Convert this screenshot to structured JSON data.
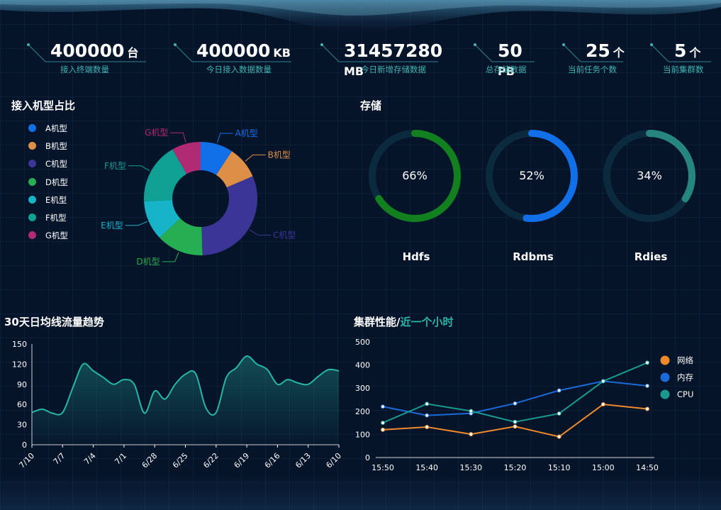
{
  "stats": [
    {
      "value": "400000",
      "unit": "台",
      "label": "接入终端数量"
    },
    {
      "value": "400000",
      "unit": "KB",
      "label": "今日接入数据数量"
    },
    {
      "value": "31457280",
      "unit": "MB",
      "label": "今日新增存储数据"
    },
    {
      "value": "50",
      "unit": "PB",
      "label": "总存储数据"
    },
    {
      "value": "25",
      "unit": "个",
      "label": "当前任务个数"
    },
    {
      "value": "5",
      "unit": "个",
      "label": "当前集群数"
    }
  ],
  "pie_section": {
    "title": "接入机型占比"
  },
  "storage_section": {
    "title": "存储"
  },
  "trend_section": {
    "title": "30天日均线流量趋势"
  },
  "cluster_section": {
    "title": "集群性能/",
    "title_highlight": "近一个小时"
  },
  "colors": {
    "A": "#1170e8",
    "B": "#dd8f48",
    "C": "#3b3597",
    "D": "#27ad52",
    "E": "#16b3c9",
    "F": "#11a094",
    "G": "#b02a74"
  },
  "chart_data": [
    {
      "type": "pie",
      "title": "",
      "categories": [
        "A机型",
        "B机型",
        "C机型",
        "D机型",
        "E机型",
        "F机型",
        "G机型"
      ],
      "values": [
        9,
        9,
        30,
        13,
        11,
        17,
        8
      ],
      "legend": [
        "A机型",
        "B机型",
        "C机型",
        "D机型",
        "E机型",
        "F机型",
        "G机型"
      ],
      "legend_position": "left",
      "colors": [
        "#1170e8",
        "#dd8f48",
        "#3b3597",
        "#27ad52",
        "#16b3c9",
        "#11a094",
        "#b02a74"
      ]
    },
    {
      "type": "gauge",
      "items": [
        {
          "name": "Hdfs",
          "value": 66,
          "label": "66%",
          "color": "#12801f"
        },
        {
          "name": "Rdbms",
          "value": 52,
          "label": "52%",
          "color": "#1170e8"
        },
        {
          "name": "Rdies",
          "value": 34,
          "label": "34%",
          "color": "#27857f"
        }
      ]
    },
    {
      "type": "area",
      "title": "",
      "x_ticks": [
        "7/10",
        "7/7",
        "7/4",
        "7/1",
        "6/28",
        "6/25",
        "6/22",
        "6/19",
        "6/16",
        "6/13",
        "6/10"
      ],
      "y_ticks": [
        "0",
        "30",
        "60",
        "90",
        "120",
        "150"
      ],
      "ylim": [
        0,
        150
      ],
      "x": [
        0,
        1,
        2,
        3,
        4,
        5,
        6,
        7,
        8,
        9,
        10,
        11,
        12,
        13,
        14,
        15,
        16,
        17,
        18,
        19,
        20,
        21,
        22,
        23,
        24,
        25,
        26,
        27,
        28,
        29,
        30
      ],
      "values": [
        48,
        53,
        47,
        48,
        85,
        120,
        110,
        100,
        90,
        97,
        90,
        47,
        80,
        68,
        90,
        105,
        106,
        55,
        48,
        100,
        115,
        132,
        120,
        112,
        90,
        97,
        92,
        90,
        102,
        112,
        110
      ],
      "color": "#27b6a5"
    },
    {
      "type": "line",
      "title": "",
      "categories": [
        "15:50",
        "15:40",
        "15:30",
        "15:20",
        "15:10",
        "15:00",
        "14:50"
      ],
      "y_ticks": [
        "0",
        "100",
        "200",
        "300",
        "400",
        "500"
      ],
      "ylim": [
        0,
        500
      ],
      "legend_position": "right",
      "series": [
        {
          "name": "网络",
          "values": [
            120,
            132,
            101,
            134,
            90,
            230,
            210
          ],
          "color": "#f0892b"
        },
        {
          "name": "内存",
          "values": [
            220,
            182,
            191,
            234,
            290,
            330,
            310
          ],
          "color": "#1a6bd9"
        },
        {
          "name": "CPU",
          "values": [
            150,
            232,
            201,
            154,
            190,
            330,
            410
          ],
          "color": "#1a9a8e"
        }
      ]
    }
  ]
}
